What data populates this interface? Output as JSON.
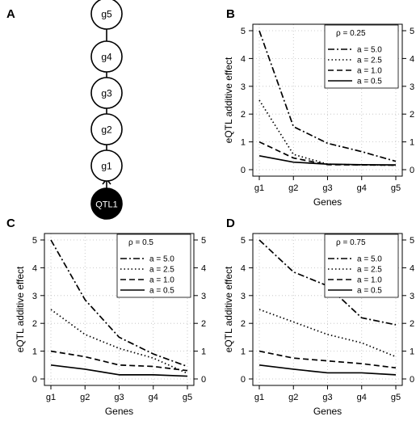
{
  "diagram": {
    "panel_label": "A",
    "nodes": [
      "g5",
      "g4",
      "g3",
      "g2",
      "g1"
    ],
    "root": "QTL1"
  },
  "chart_data": [
    {
      "panel_label": "B",
      "type": "line",
      "categories": [
        "g1",
        "g2",
        "g3",
        "g4",
        "g5"
      ],
      "xlabel": "Genes",
      "ylabel": "eQTL additive effect",
      "ylim": [
        0,
        5
      ],
      "yticks": [
        "0",
        "1",
        "2",
        "3",
        "4",
        "5"
      ],
      "grid": true,
      "legend_position": "top-right",
      "legend_title": "ρ = 0.25",
      "series": [
        {
          "name": "a = 5.0",
          "dash": "dashdot",
          "values": [
            5.0,
            1.55,
            0.95,
            0.65,
            0.3
          ]
        },
        {
          "name": "a = 2.5",
          "dash": "dotted",
          "values": [
            2.5,
            0.55,
            0.2,
            0.17,
            0.16
          ]
        },
        {
          "name": "a = 1.0",
          "dash": "dashed",
          "values": [
            1.0,
            0.42,
            0.18,
            0.17,
            0.16
          ]
        },
        {
          "name": "a = 0.5",
          "dash": "solid",
          "values": [
            0.5,
            0.27,
            0.2,
            0.18,
            0.17
          ]
        }
      ]
    },
    {
      "panel_label": "C",
      "type": "line",
      "categories": [
        "g1",
        "g2",
        "g3",
        "g4",
        "g5"
      ],
      "xlabel": "Genes",
      "ylabel": "eQTL additive effect",
      "ylim": [
        0,
        5
      ],
      "yticks": [
        "0",
        "1",
        "2",
        "3",
        "4",
        "5"
      ],
      "grid": true,
      "legend_position": "top-right",
      "legend_title": "ρ = 0.5",
      "series": [
        {
          "name": "a = 5.0",
          "dash": "dashdot",
          "values": [
            5.0,
            2.85,
            1.5,
            0.9,
            0.45
          ]
        },
        {
          "name": "a = 2.5",
          "dash": "dotted",
          "values": [
            2.5,
            1.6,
            1.1,
            0.75,
            0.2
          ]
        },
        {
          "name": "a = 1.0",
          "dash": "dashed",
          "values": [
            1.0,
            0.8,
            0.5,
            0.45,
            0.3
          ]
        },
        {
          "name": "a = 0.5",
          "dash": "solid",
          "values": [
            0.5,
            0.35,
            0.15,
            0.15,
            0.1
          ]
        }
      ]
    },
    {
      "panel_label": "D",
      "type": "line",
      "categories": [
        "g1",
        "g2",
        "g3",
        "g4",
        "g5"
      ],
      "xlabel": "Genes",
      "ylabel": "eQTL additive effect",
      "ylim": [
        0,
        5
      ],
      "yticks": [
        "0",
        "1",
        "2",
        "3",
        "4",
        "5"
      ],
      "grid": true,
      "legend_position": "top-right",
      "legend_title": "ρ = 0.75",
      "series": [
        {
          "name": "a = 5.0",
          "dash": "dashdot",
          "values": [
            5.0,
            3.85,
            3.35,
            2.2,
            1.95
          ]
        },
        {
          "name": "a = 2.5",
          "dash": "dotted",
          "values": [
            2.5,
            2.05,
            1.6,
            1.3,
            0.8
          ]
        },
        {
          "name": "a = 1.0",
          "dash": "dashed",
          "values": [
            1.0,
            0.75,
            0.65,
            0.55,
            0.4
          ]
        },
        {
          "name": "a = 0.5",
          "dash": "solid",
          "values": [
            0.5,
            0.35,
            0.22,
            0.22,
            0.15
          ]
        }
      ]
    }
  ]
}
